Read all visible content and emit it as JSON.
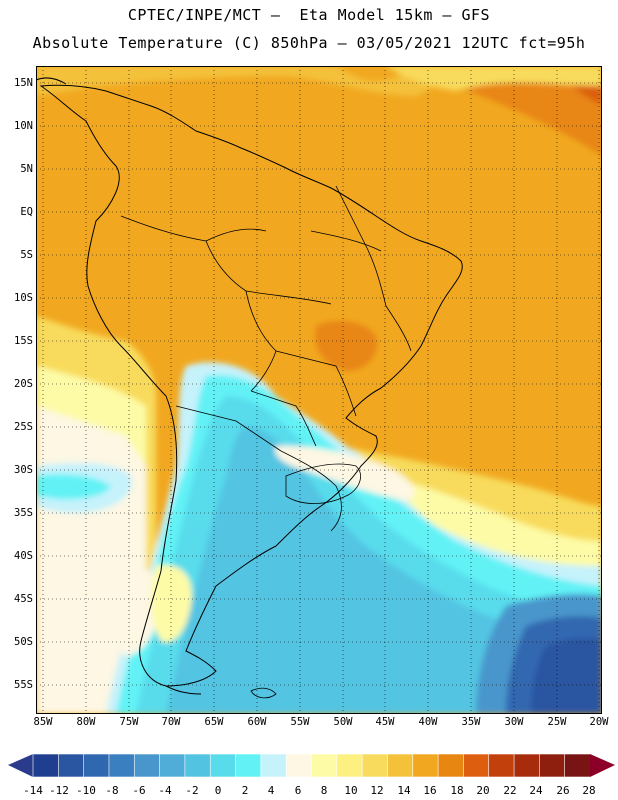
{
  "header": {
    "line1": "CPTEC/INPE/MCT –  Eta Model 15km – GFS",
    "line2": "Absolute Temperature (C) 850hPa – 03/05/2021 12UTC fct=95h"
  },
  "axes": {
    "lat_labels": [
      "15N",
      "10N",
      "5N",
      "EQ",
      "5S",
      "10S",
      "15S",
      "20S",
      "25S",
      "30S",
      "35S",
      "40S",
      "45S",
      "50S",
      "55S"
    ],
    "lon_labels": [
      "85W",
      "80W",
      "75W",
      "70W",
      "65W",
      "60W",
      "55W",
      "50W",
      "45W",
      "40W",
      "35W",
      "30W",
      "25W",
      "20W"
    ]
  },
  "colorbar": {
    "unit": "C",
    "tick_labels": [
      "-14",
      "-12",
      "-10",
      "-8",
      "-6",
      "-4",
      "-2",
      "0",
      "2",
      "4",
      "6",
      "8",
      "10",
      "12",
      "14",
      "16",
      "18",
      "20",
      "22",
      "24",
      "26",
      "28"
    ],
    "colors": [
      "#1f3e8f",
      "#2a55a0",
      "#3068b0",
      "#3a7fc0",
      "#4896cc",
      "#4fadd8",
      "#52c4e2",
      "#58dcec",
      "#62f2f6",
      "#c6f2fb",
      "#fdf7e3",
      "#fdfba6",
      "#fbf080",
      "#f8db5c",
      "#f4c13a",
      "#f1a820",
      "#e88612",
      "#dc5e0e",
      "#c2400c",
      "#a72c0c",
      "#8e1e0e",
      "#781414"
    ],
    "below_color": "#2a3b8c",
    "above_color": "#8c0028"
  }
}
